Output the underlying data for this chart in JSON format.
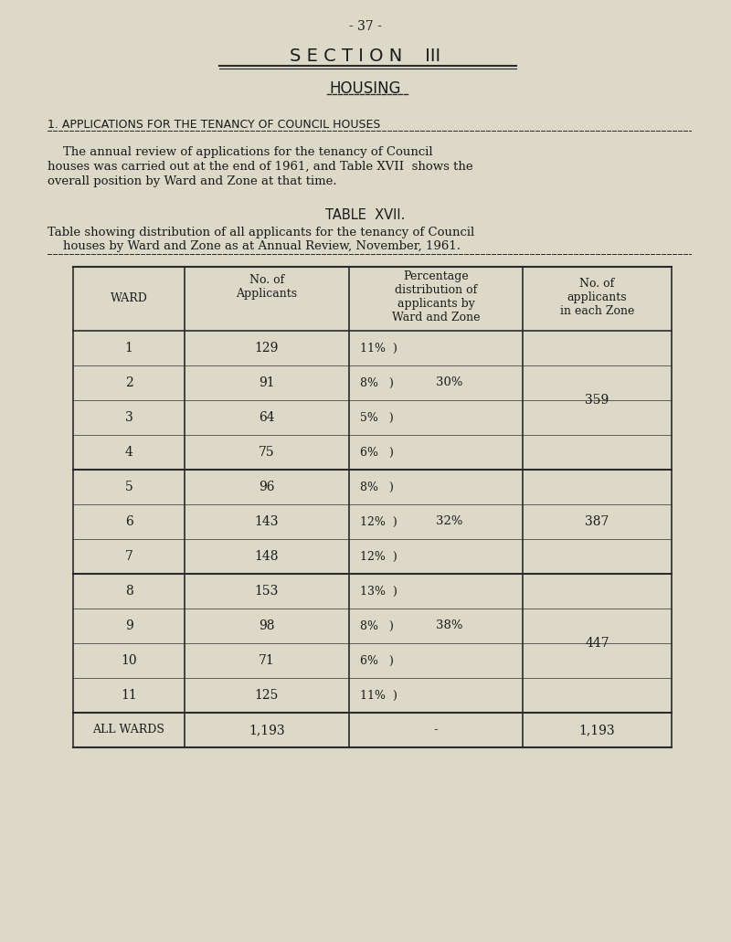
{
  "page_number": "- 37 -",
  "section_title": "S E C T I O N    III",
  "subtitle": "HOUSING",
  "section_heading": "1. APPLICATIONS FOR THE TENANCY OF COUNCIL HOUSES",
  "para_line1": "    The annual review of applications for the tenancy of Council",
  "para_line2": "houses was carried out at the end of 1961, and Table XVII  shows the",
  "para_line3": "overall position by Ward and Zone at that time.",
  "table_title": "TABLE  XVII.",
  "table_sub1": "Table showing distribution of all applicants for the tenancy of Council",
  "table_sub2": "    houses by Ward and Zone as at Annual Review, November, 1961.",
  "col1_header": "WARD",
  "col2_header": "No. of\nApplicants",
  "col3_header": "Percentage\ndistribution of\napplicants by\nWard and Zone",
  "col4_header": "No. of\napplicants\nin each Zone",
  "zone1_wards": [
    "1",
    "2",
    "3",
    "4"
  ],
  "zone1_appls": [
    "129",
    "91",
    "64",
    "75"
  ],
  "zone1_pcts": [
    "11%  )",
    "8%   )",
    "5%   )",
    "6%   )"
  ],
  "zone1_zpct": "30%",
  "zone1_zpct_row": 1,
  "zone1_total": "359",
  "zone2_wards": [
    "5",
    "6",
    "7"
  ],
  "zone2_appls": [
    "96",
    "143",
    "148"
  ],
  "zone2_pcts": [
    "8%   )",
    "12%  )",
    "12%  )"
  ],
  "zone2_zpct": "32%",
  "zone2_zpct_row": 1,
  "zone2_total": "387",
  "zone3_wards": [
    "8",
    "9",
    "10",
    "11"
  ],
  "zone3_appls": [
    "153",
    "98",
    "71",
    "125"
  ],
  "zone3_pcts": [
    "13%  )",
    "8%   )",
    "6%   )",
    "11%  )"
  ],
  "zone3_zpct": "38%",
  "zone3_zpct_row": 1,
  "zone3_total": "447",
  "total_ward": "ALL WARDS",
  "total_appl": "1,193",
  "total_pct": "-",
  "total_zone": "1,193",
  "bg_color": "#ddd9c8",
  "text_color": "#1a1a1a",
  "line_color": "#2a2a2a"
}
